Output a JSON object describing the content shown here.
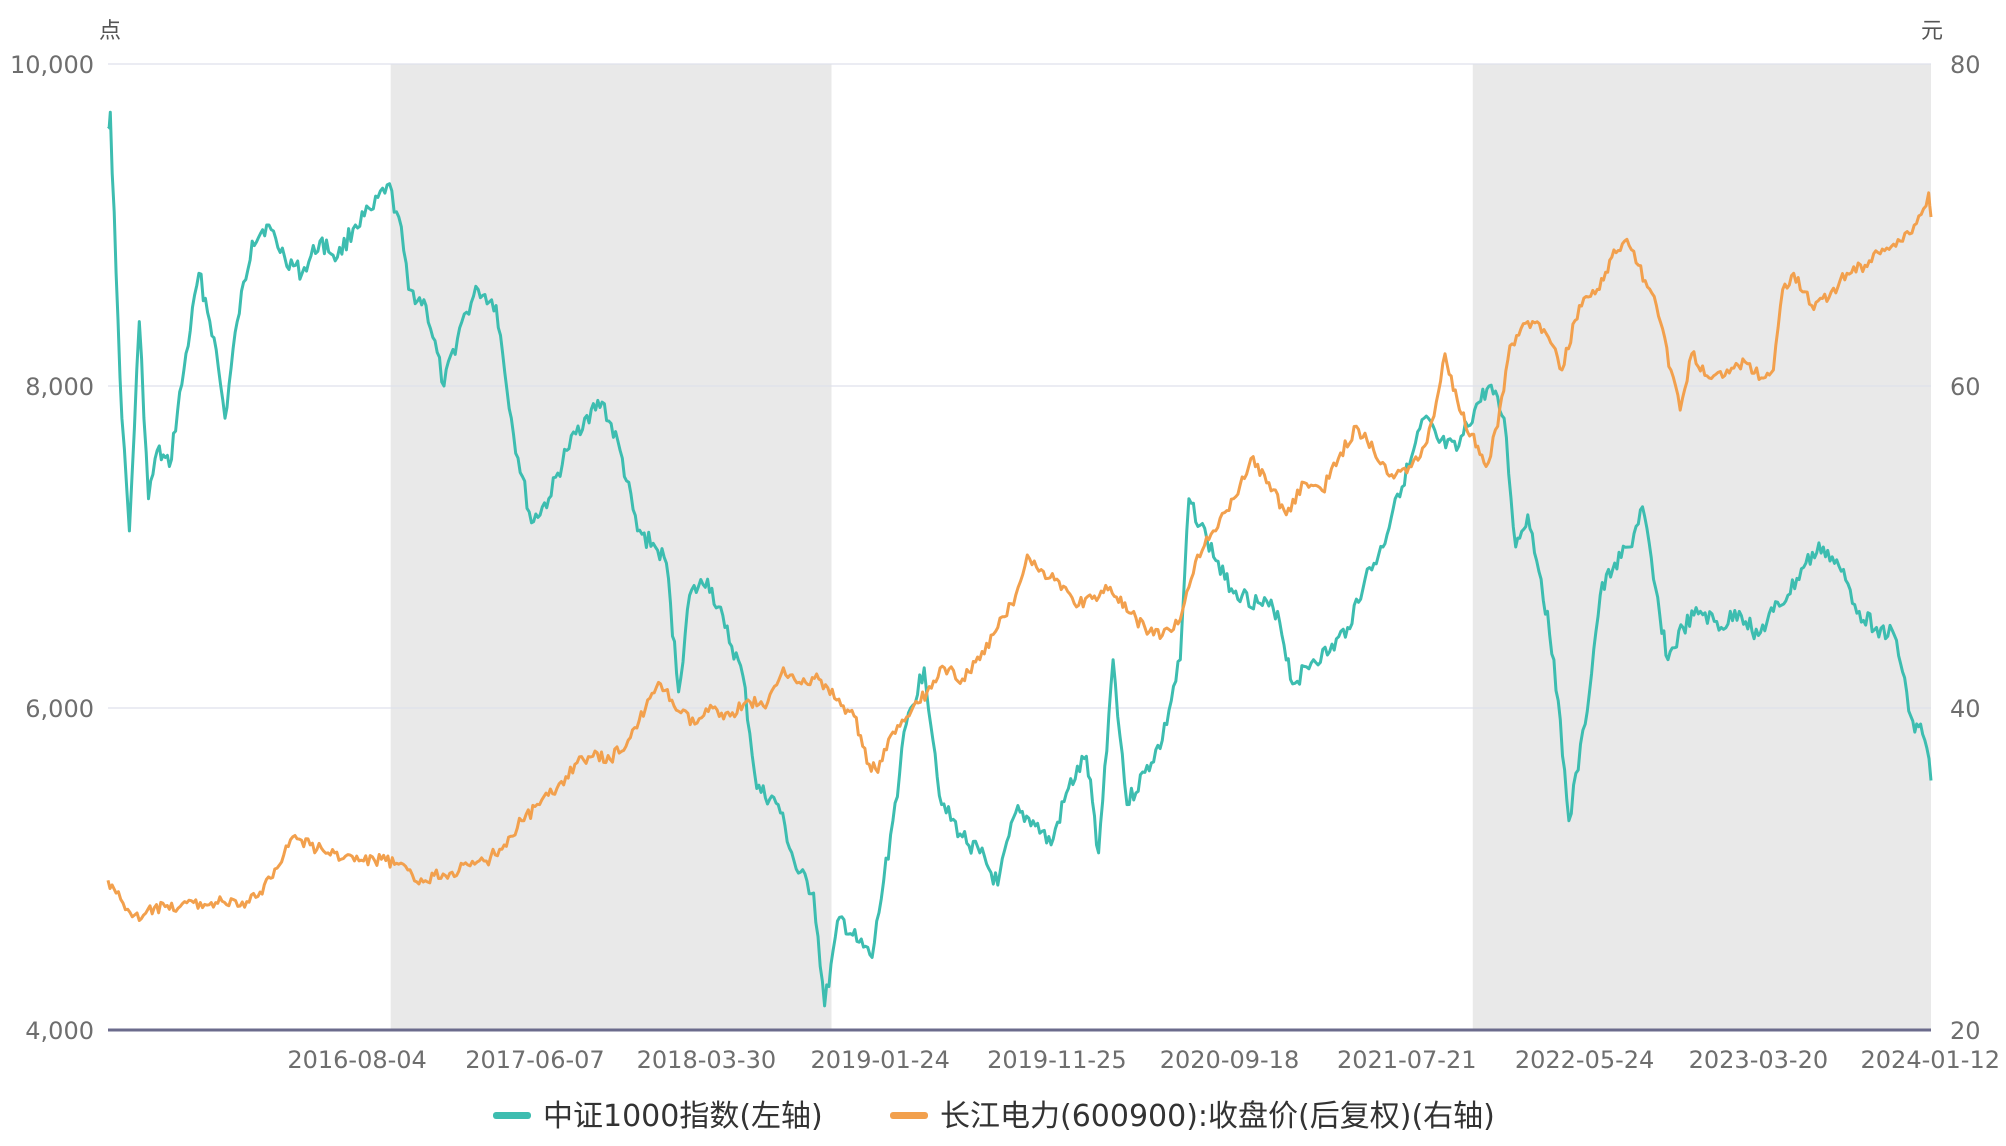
{
  "chart_data": {
    "type": "line",
    "title": "",
    "left_axis_unit": "点",
    "right_axis_unit": "元",
    "ylim_left": [
      4000,
      10000
    ],
    "ylim_right": [
      20,
      80
    ],
    "yticks_left": [
      "4,000",
      "6,000",
      "8,000",
      "10,000"
    ],
    "yticks_right": [
      "20",
      "40",
      "60",
      "80"
    ],
    "x_range": [
      "2015-06-01",
      "2024-01-12"
    ],
    "xticks": [
      "2016-08-04",
      "2017-06-07",
      "2018-03-30",
      "2019-01-24",
      "2019-11-25",
      "2020-09-18",
      "2021-07-21",
      "2022-05-24",
      "2023-03-20",
      "2024-01-12"
    ],
    "shaded_periods": [
      [
        "2016-10-01",
        "2018-11-01"
      ],
      [
        "2021-11-12",
        "2024-01-12"
      ]
    ],
    "series": [
      {
        "name": "中证1000指数(左轴)",
        "axis": "left",
        "color": "#3dbdb0",
        "points": [
          [
            "2015-06-01",
            9600
          ],
          [
            "2015-06-05",
            9700
          ],
          [
            "2015-06-15",
            8700
          ],
          [
            "2015-06-25",
            7800
          ],
          [
            "2015-07-08",
            7100
          ],
          [
            "2015-07-25",
            8400
          ],
          [
            "2015-08-10",
            7300
          ],
          [
            "2015-08-25",
            7600
          ],
          [
            "2015-09-15",
            7500
          ],
          [
            "2015-10-10",
            8100
          ],
          [
            "2015-11-05",
            8700
          ],
          [
            "2015-12-01",
            8300
          ],
          [
            "2015-12-20",
            7800
          ],
          [
            "2016-01-10",
            8400
          ],
          [
            "2016-02-05",
            8900
          ],
          [
            "2016-03-01",
            9000
          ],
          [
            "2016-04-01",
            8800
          ],
          [
            "2016-05-01",
            8700
          ],
          [
            "2016-06-01",
            8900
          ],
          [
            "2016-07-01",
            8800
          ],
          [
            "2016-08-01",
            9000
          ],
          [
            "2016-09-01",
            9100
          ],
          [
            "2016-09-25",
            9250
          ],
          [
            "2016-10-15",
            9050
          ],
          [
            "2016-11-01",
            8600
          ],
          [
            "2016-12-01",
            8500
          ],
          [
            "2017-01-01",
            8000
          ],
          [
            "2017-02-01",
            8400
          ],
          [
            "2017-03-01",
            8600
          ],
          [
            "2017-04-01",
            8500
          ],
          [
            "2017-05-01",
            7700
          ],
          [
            "2017-06-01",
            7150
          ],
          [
            "2017-07-01",
            7300
          ],
          [
            "2017-08-01",
            7600
          ],
          [
            "2017-09-01",
            7800
          ],
          [
            "2017-10-01",
            7900
          ],
          [
            "2017-11-01",
            7600
          ],
          [
            "2017-12-01",
            7100
          ],
          [
            "2018-01-01",
            7000
          ],
          [
            "2018-01-20",
            6900
          ],
          [
            "2018-02-10",
            6100
          ],
          [
            "2018-03-01",
            6700
          ],
          [
            "2018-04-01",
            6800
          ],
          [
            "2018-05-01",
            6500
          ],
          [
            "2018-06-01",
            6200
          ],
          [
            "2018-06-25",
            5500
          ],
          [
            "2018-08-01",
            5400
          ],
          [
            "2018-09-01",
            5000
          ],
          [
            "2018-10-01",
            4850
          ],
          [
            "2018-10-20",
            4150
          ],
          [
            "2018-11-15",
            4700
          ],
          [
            "2018-12-15",
            4550
          ],
          [
            "2019-01-10",
            4450
          ],
          [
            "2019-02-15",
            5300
          ],
          [
            "2019-03-10",
            5900
          ],
          [
            "2019-04-10",
            6250
          ],
          [
            "2019-05-10",
            5400
          ],
          [
            "2019-06-15",
            5200
          ],
          [
            "2019-07-15",
            5100
          ],
          [
            "2019-08-15",
            4900
          ],
          [
            "2019-09-15",
            5350
          ],
          [
            "2019-10-15",
            5300
          ],
          [
            "2019-11-15",
            5150
          ],
          [
            "2019-12-15",
            5500
          ],
          [
            "2020-01-15",
            5700
          ],
          [
            "2020-02-05",
            5100
          ],
          [
            "2020-03-01",
            6300
          ],
          [
            "2020-03-25",
            5400
          ],
          [
            "2020-04-25",
            5600
          ],
          [
            "2020-05-25",
            5800
          ],
          [
            "2020-06-25",
            6300
          ],
          [
            "2020-07-10",
            7300
          ],
          [
            "2020-08-10",
            7050
          ],
          [
            "2020-09-10",
            6800
          ],
          [
            "2020-10-10",
            6700
          ],
          [
            "2020-11-10",
            6650
          ],
          [
            "2020-12-10",
            6600
          ],
          [
            "2021-01-05",
            6150
          ],
          [
            "2021-02-10",
            6300
          ],
          [
            "2021-03-10",
            6350
          ],
          [
            "2021-04-10",
            6500
          ],
          [
            "2021-05-10",
            6800
          ],
          [
            "2021-06-10",
            7000
          ],
          [
            "2021-07-01",
            7300
          ],
          [
            "2021-07-25",
            7500
          ],
          [
            "2021-08-20",
            7800
          ],
          [
            "2021-09-15",
            7650
          ],
          [
            "2021-10-15",
            7600
          ],
          [
            "2021-11-15",
            7850
          ],
          [
            "2021-12-10",
            8000
          ],
          [
            "2022-01-05",
            7800
          ],
          [
            "2022-01-25",
            7000
          ],
          [
            "2022-02-15",
            7200
          ],
          [
            "2022-03-10",
            6800
          ],
          [
            "2022-04-01",
            6300
          ],
          [
            "2022-04-27",
            5300
          ],
          [
            "2022-05-25",
            5900
          ],
          [
            "2022-06-20",
            6700
          ],
          [
            "2022-07-15",
            6900
          ],
          [
            "2022-08-10",
            7000
          ],
          [
            "2022-09-01",
            7250
          ],
          [
            "2022-09-20",
            6800
          ],
          [
            "2022-10-15",
            6300
          ],
          [
            "2022-11-10",
            6500
          ],
          [
            "2022-12-10",
            6600
          ],
          [
            "2023-01-15",
            6500
          ],
          [
            "2023-02-15",
            6600
          ],
          [
            "2023-03-20",
            6450
          ],
          [
            "2023-04-15",
            6600
          ],
          [
            "2023-05-10",
            6700
          ],
          [
            "2023-06-10",
            6900
          ],
          [
            "2023-07-10",
            7000
          ],
          [
            "2023-08-10",
            6850
          ],
          [
            "2023-09-10",
            6600
          ],
          [
            "2023-10-10",
            6500
          ],
          [
            "2023-11-10",
            6450
          ],
          [
            "2023-12-01",
            6100
          ],
          [
            "2023-12-15",
            5850
          ],
          [
            "2023-12-25",
            5900
          ],
          [
            "2024-01-05",
            5750
          ],
          [
            "2024-01-12",
            5550
          ]
        ]
      },
      {
        "name": "长江电力(600900):收盘价(后复权)(右轴)",
        "axis": "right",
        "color": "#f2a04d",
        "points": [
          [
            "2015-06-01",
            29.3
          ],
          [
            "2015-06-15",
            28.5
          ],
          [
            "2015-07-05",
            27.5
          ],
          [
            "2015-07-25",
            26.8
          ],
          [
            "2015-08-20",
            27.6
          ],
          [
            "2015-09-15",
            27.5
          ],
          [
            "2015-10-15",
            27.9
          ],
          [
            "2015-11-15",
            27.8
          ],
          [
            "2015-12-15",
            28.0
          ],
          [
            "2016-01-15",
            27.7
          ],
          [
            "2016-02-15",
            28.3
          ],
          [
            "2016-03-15",
            30.0
          ],
          [
            "2016-04-15",
            32.0
          ],
          [
            "2016-05-15",
            31.5
          ],
          [
            "2016-06-15",
            31.0
          ],
          [
            "2016-07-15",
            30.8
          ],
          [
            "2016-08-15",
            30.5
          ],
          [
            "2016-09-15",
            30.6
          ],
          [
            "2016-10-15",
            30.3
          ],
          [
            "2016-11-15",
            29.2
          ],
          [
            "2016-12-15",
            29.6
          ],
          [
            "2017-01-15",
            29.8
          ],
          [
            "2017-02-15",
            30.2
          ],
          [
            "2017-03-15",
            30.5
          ],
          [
            "2017-04-15",
            31.5
          ],
          [
            "2017-05-15",
            33.0
          ],
          [
            "2017-06-15",
            34.0
          ],
          [
            "2017-07-15",
            35.0
          ],
          [
            "2017-08-15",
            36.5
          ],
          [
            "2017-09-15",
            37.0
          ],
          [
            "2017-10-15",
            36.8
          ],
          [
            "2017-11-15",
            38.0
          ],
          [
            "2017-12-15",
            40.0
          ],
          [
            "2018-01-10",
            41.5
          ],
          [
            "2018-02-10",
            39.8
          ],
          [
            "2018-03-10",
            39.0
          ],
          [
            "2018-04-10",
            40.0
          ],
          [
            "2018-05-10",
            39.5
          ],
          [
            "2018-06-10",
            40.5
          ],
          [
            "2018-07-10",
            40.0
          ],
          [
            "2018-08-10",
            42.5
          ],
          [
            "2018-09-10",
            41.5
          ],
          [
            "2018-10-10",
            41.8
          ],
          [
            "2018-11-10",
            40.5
          ],
          [
            "2018-12-10",
            39.5
          ],
          [
            "2019-01-05",
            36.5
          ],
          [
            "2019-01-20",
            36.0
          ],
          [
            "2019-02-15",
            38.5
          ],
          [
            "2019-03-15",
            39.5
          ],
          [
            "2019-04-15",
            41.0
          ],
          [
            "2019-05-15",
            42.5
          ],
          [
            "2019-06-15",
            41.8
          ],
          [
            "2019-07-15",
            43.0
          ],
          [
            "2019-08-15",
            45.0
          ],
          [
            "2019-09-15",
            47.0
          ],
          [
            "2019-10-05",
            49.5
          ],
          [
            "2019-10-25",
            48.5
          ],
          [
            "2019-11-25",
            48.0
          ],
          [
            "2019-12-25",
            46.5
          ],
          [
            "2020-01-25",
            46.8
          ],
          [
            "2020-02-25",
            47.5
          ],
          [
            "2020-03-25",
            46.0
          ],
          [
            "2020-04-25",
            45.0
          ],
          [
            "2020-05-25",
            44.5
          ],
          [
            "2020-06-25",
            45.5
          ],
          [
            "2020-07-25",
            49.5
          ],
          [
            "2020-08-25",
            51.0
          ],
          [
            "2020-09-25",
            53.0
          ],
          [
            "2020-10-25",
            55.5
          ],
          [
            "2020-11-25",
            54.0
          ],
          [
            "2020-12-25",
            52.0
          ],
          [
            "2021-01-25",
            54.0
          ],
          [
            "2021-02-25",
            53.5
          ],
          [
            "2021-03-25",
            55.5
          ],
          [
            "2021-04-25",
            57.5
          ],
          [
            "2021-05-25",
            56.0
          ],
          [
            "2021-06-25",
            54.5
          ],
          [
            "2021-07-25",
            55.0
          ],
          [
            "2021-08-25",
            56.5
          ],
          [
            "2021-09-10",
            59.0
          ],
          [
            "2021-09-25",
            62.0
          ],
          [
            "2021-10-20",
            58.5
          ],
          [
            "2021-11-10",
            57.0
          ],
          [
            "2021-12-05",
            55.0
          ],
          [
            "2021-12-25",
            57.5
          ],
          [
            "2022-01-15",
            62.5
          ],
          [
            "2022-02-15",
            64.0
          ],
          [
            "2022-03-15",
            63.5
          ],
          [
            "2022-04-15",
            61.0
          ],
          [
            "2022-05-15",
            65.0
          ],
          [
            "2022-06-15",
            66.0
          ],
          [
            "2022-07-10",
            68.0
          ],
          [
            "2022-08-01",
            69.0
          ],
          [
            "2022-08-25",
            67.5
          ],
          [
            "2022-09-25",
            65.0
          ],
          [
            "2022-10-20",
            61.0
          ],
          [
            "2022-11-05",
            58.5
          ],
          [
            "2022-11-25",
            62.0
          ],
          [
            "2022-12-25",
            60.5
          ],
          [
            "2023-01-25",
            61.0
          ],
          [
            "2023-02-25",
            61.5
          ],
          [
            "2023-03-25",
            60.5
          ],
          [
            "2023-04-15",
            61.0
          ],
          [
            "2023-05-01",
            66.0
          ],
          [
            "2023-05-20",
            67.0
          ],
          [
            "2023-06-20",
            65.0
          ],
          [
            "2023-07-20",
            65.5
          ],
          [
            "2023-08-20",
            67.0
          ],
          [
            "2023-09-20",
            67.5
          ],
          [
            "2023-10-20",
            68.5
          ],
          [
            "2023-11-20",
            69.0
          ],
          [
            "2023-12-10",
            69.5
          ],
          [
            "2023-12-30",
            71.0
          ],
          [
            "2024-01-08",
            72.0
          ],
          [
            "2024-01-12",
            70.5
          ]
        ]
      }
    ],
    "legend": [
      {
        "label": "中证1000指数(左轴)",
        "color": "#3dbdb0"
      },
      {
        "label": "长江电力(600900):收盘价(后复权)(右轴)",
        "color": "#f2a04d"
      }
    ],
    "legend_position": "bottom-center",
    "grid": true
  }
}
